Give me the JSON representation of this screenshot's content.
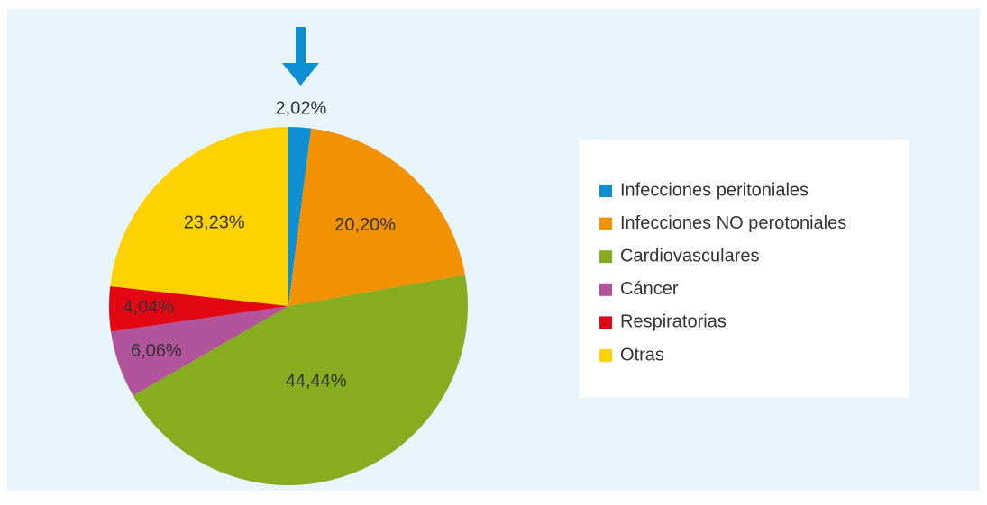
{
  "chart_data": {
    "type": "pie",
    "categories": [
      "Infecciones peritoniales",
      "Infecciones NO perotoniales",
      "Cardiovasculares",
      "Cáncer",
      "Respiratorias",
      "Otras"
    ],
    "values": [
      2.02,
      20.2,
      44.44,
      6.06,
      4.04,
      23.23
    ],
    "value_labels": [
      "2,02%",
      "20,20%",
      "44,44%",
      "6,06%",
      "4,04%",
      "23,23%"
    ],
    "colors": [
      "#0f8fd3",
      "#f39200",
      "#86ac1f",
      "#b2549c",
      "#e30613",
      "#ffd200"
    ],
    "legend": "right"
  }
}
